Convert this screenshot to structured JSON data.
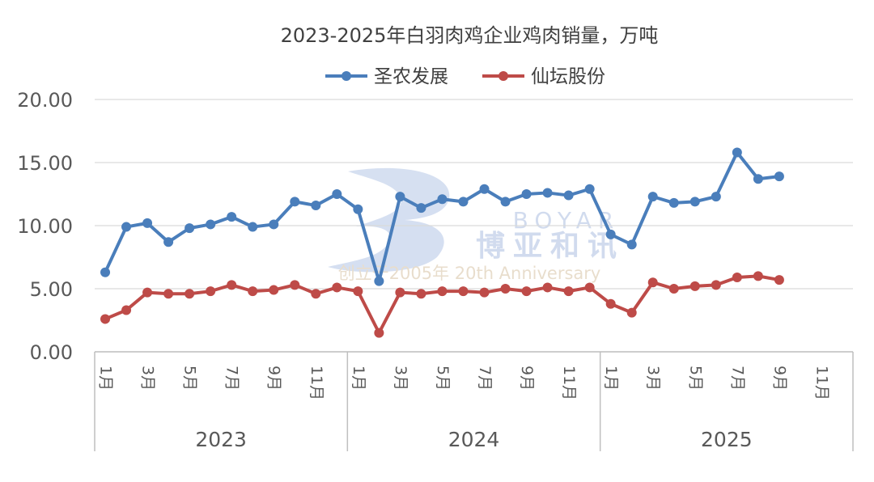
{
  "chart_data": {
    "type": "line",
    "title": "2023-2025年白羽肉鸡企业鸡肉销量，万吨",
    "xlabel": "",
    "ylabel": "",
    "ylim": [
      0,
      20
    ],
    "yticks": [
      "0.00",
      "5.00",
      "10.00",
      "15.00",
      "20.00"
    ],
    "grid": "horizontal",
    "legend_position": "top-center",
    "x_tick_labels": [
      "1月",
      "",
      "3月",
      "",
      "5月",
      "",
      "7月",
      "",
      "9月",
      "",
      "11月",
      "",
      "1月",
      "",
      "3月",
      "",
      "5月",
      "",
      "7月",
      "",
      "9月",
      "",
      "11月",
      "",
      "1月",
      "",
      "3月",
      "",
      "5月",
      "",
      "7月",
      "",
      "9月",
      "",
      "11月",
      ""
    ],
    "years": [
      "2023",
      "2024",
      "2025"
    ],
    "series": [
      {
        "name": "圣农发展",
        "color": "#4a7ebb",
        "values": [
          6.3,
          9.9,
          10.2,
          8.7,
          9.8,
          10.1,
          10.7,
          9.9,
          10.1,
          11.9,
          11.6,
          12.5,
          11.3,
          5.6,
          12.3,
          11.4,
          12.1,
          11.9,
          12.9,
          11.9,
          12.5,
          12.6,
          12.4,
          12.9,
          9.3,
          8.5,
          12.3,
          11.8,
          11.9,
          12.3,
          15.8,
          13.7,
          13.9,
          null,
          null,
          null
        ]
      },
      {
        "name": "仙坛股份",
        "color": "#be4b48",
        "values": [
          2.6,
          3.3,
          4.7,
          4.6,
          4.6,
          4.8,
          5.3,
          4.8,
          4.9,
          5.3,
          4.6,
          5.1,
          4.8,
          1.5,
          4.7,
          4.6,
          4.8,
          4.8,
          4.7,
          5.0,
          4.8,
          5.1,
          4.8,
          5.1,
          3.8,
          3.1,
          5.5,
          5.0,
          5.2,
          5.3,
          5.9,
          6.0,
          5.7,
          null,
          null,
          null
        ]
      }
    ]
  },
  "watermark": {
    "brand_latin": "BOYAR",
    "brand_cn": "博亚和讯",
    "tagline": "创立于2005年 20th Anniversary"
  }
}
